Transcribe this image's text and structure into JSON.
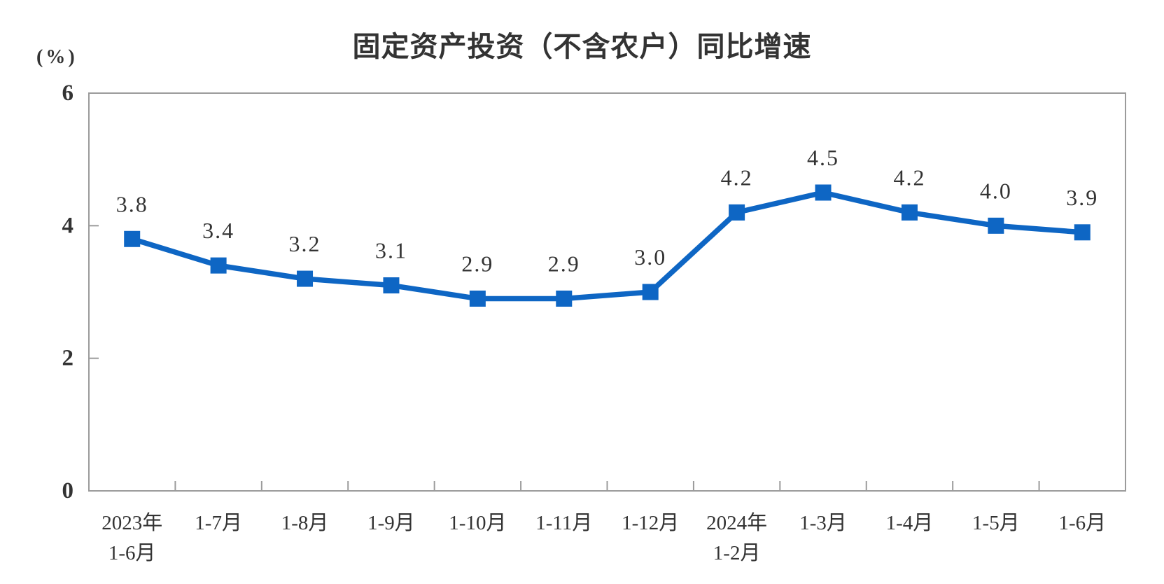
{
  "chart_data": {
    "type": "line",
    "title": "固定资产投资（不含农户）同比增速",
    "unit_label": "(%)",
    "categories": [
      "2023年\n1-6月",
      "1-7月",
      "1-8月",
      "1-9月",
      "1-10月",
      "1-11月",
      "1-12月",
      "2024年\n1-2月",
      "1-3月",
      "1-4月",
      "1-5月",
      "1-6月"
    ],
    "values": [
      3.8,
      3.4,
      3.2,
      3.1,
      2.9,
      2.9,
      3.0,
      4.2,
      4.5,
      4.2,
      4.0,
      3.9
    ],
    "data_labels": [
      "3.8",
      "3.4",
      "3.2",
      "3.1",
      "2.9",
      "2.9",
      "3.0",
      "4.2",
      "4.5",
      "4.2",
      "4.0",
      "3.9"
    ],
    "xlabel": "",
    "ylabel": "",
    "ylim": [
      0,
      6
    ],
    "yticks": [
      0,
      2,
      4,
      6
    ],
    "grid": false,
    "legend_position": "none",
    "colors": {
      "line": "#0e66c4",
      "marker": "#0e66c4",
      "axis": "#9b9b9b",
      "text": "#333333"
    }
  }
}
